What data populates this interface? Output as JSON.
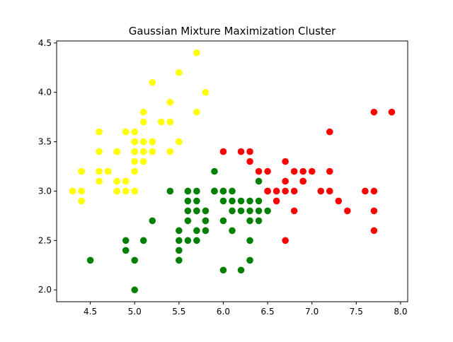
{
  "chart_data": {
    "type": "scatter",
    "title": "Gaussian Mixture Maximization Cluster",
    "xlabel": "",
    "ylabel": "",
    "xlim": [
      4.12,
      8.08
    ],
    "ylim": [
      1.88,
      4.52
    ],
    "x_ticks": [
      "4.5",
      "5.0",
      "5.5",
      "6.0",
      "6.5",
      "7.0",
      "7.5",
      "8.0"
    ],
    "y_ticks": [
      "2.0",
      "2.5",
      "3.0",
      "3.5",
      "4.0",
      "4.5"
    ],
    "grid": false,
    "series": [
      {
        "color": "#ffff00",
        "points": [
          [
            5.1,
            3.5
          ],
          [
            4.9,
            3.0
          ],
          [
            4.7,
            3.2
          ],
          [
            4.6,
            3.1
          ],
          [
            5.0,
            3.6
          ],
          [
            5.4,
            3.9
          ],
          [
            4.6,
            3.4
          ],
          [
            5.0,
            3.4
          ],
          [
            4.4,
            2.9
          ],
          [
            4.9,
            3.1
          ],
          [
            5.4,
            3.7
          ],
          [
            4.8,
            3.4
          ],
          [
            4.8,
            3.0
          ],
          [
            4.3,
            3.0
          ],
          [
            5.8,
            4.0
          ],
          [
            5.7,
            4.4
          ],
          [
            5.1,
            3.8
          ],
          [
            5.7,
            3.8
          ],
          [
            5.4,
            3.4
          ],
          [
            4.6,
            3.6
          ],
          [
            5.1,
            3.3
          ],
          [
            5.0,
            3.0
          ],
          [
            5.2,
            3.5
          ],
          [
            5.2,
            3.4
          ],
          [
            4.7,
            3.2
          ],
          [
            4.8,
            3.1
          ],
          [
            5.2,
            4.1
          ],
          [
            5.5,
            4.2
          ],
          [
            4.9,
            3.1
          ],
          [
            5.0,
            3.2
          ],
          [
            5.5,
            3.5
          ],
          [
            4.4,
            3.0
          ],
          [
            5.1,
            3.4
          ],
          [
            4.4,
            3.2
          ],
          [
            5.1,
            3.7
          ],
          [
            5.0,
            3.5
          ],
          [
            5.3,
            3.7
          ],
          [
            5.0,
            3.3
          ],
          [
            4.9,
            3.6
          ],
          [
            4.8,
            3.4
          ],
          [
            5.1,
            3.5
          ],
          [
            5.0,
            3.4
          ],
          [
            5.4,
            3.7
          ],
          [
            5.2,
            3.5
          ],
          [
            4.9,
            3.6
          ],
          [
            5.0,
            3.5
          ],
          [
            4.4,
            3.2
          ],
          [
            5.1,
            3.4
          ],
          [
            4.8,
            3.0
          ],
          [
            4.6,
            3.2
          ]
        ]
      },
      {
        "color": "#008000",
        "points": [
          [
            4.5,
            2.3
          ],
          [
            5.0,
            2.0
          ],
          [
            4.9,
            2.5
          ],
          [
            4.9,
            2.4
          ],
          [
            5.0,
            2.3
          ],
          [
            5.1,
            2.5
          ],
          [
            5.2,
            2.7
          ],
          [
            5.4,
            3.0
          ],
          [
            5.5,
            2.3
          ],
          [
            5.5,
            2.4
          ],
          [
            5.5,
            2.5
          ],
          [
            5.5,
            2.6
          ],
          [
            5.6,
            2.5
          ],
          [
            5.6,
            2.7
          ],
          [
            5.6,
            2.8
          ],
          [
            5.6,
            2.9
          ],
          [
            5.6,
            3.0
          ],
          [
            5.7,
            2.5
          ],
          [
            5.7,
            2.6
          ],
          [
            5.7,
            2.8
          ],
          [
            5.7,
            2.9
          ],
          [
            5.7,
            3.0
          ],
          [
            5.8,
            2.6
          ],
          [
            5.8,
            2.7
          ],
          [
            5.8,
            2.8
          ],
          [
            5.9,
            3.0
          ],
          [
            5.9,
            3.2
          ],
          [
            6.0,
            2.2
          ],
          [
            6.0,
            2.7
          ],
          [
            6.0,
            2.9
          ],
          [
            6.0,
            3.0
          ],
          [
            6.1,
            2.6
          ],
          [
            6.1,
            2.8
          ],
          [
            6.1,
            2.9
          ],
          [
            6.1,
            3.0
          ],
          [
            6.2,
            2.2
          ],
          [
            6.2,
            2.8
          ],
          [
            6.2,
            2.9
          ],
          [
            6.3,
            2.3
          ],
          [
            6.3,
            2.5
          ],
          [
            6.3,
            2.7
          ],
          [
            6.3,
            2.8
          ],
          [
            6.3,
            2.9
          ],
          [
            6.4,
            2.7
          ],
          [
            6.4,
            2.8
          ],
          [
            6.4,
            2.9
          ],
          [
            6.4,
            3.1
          ],
          [
            6.5,
            2.8
          ],
          [
            6.0,
            3.0
          ],
          [
            5.9,
            3.0
          ],
          [
            5.8,
            2.7
          ],
          [
            5.7,
            2.8
          ]
        ]
      },
      {
        "color": "#ff0000",
        "points": [
          [
            6.0,
            3.4
          ],
          [
            6.2,
            3.4
          ],
          [
            6.3,
            3.4
          ],
          [
            6.3,
            3.3
          ],
          [
            6.4,
            3.2
          ],
          [
            6.5,
            3.2
          ],
          [
            6.5,
            3.0
          ],
          [
            6.6,
            3.0
          ],
          [
            6.6,
            2.9
          ],
          [
            6.7,
            3.3
          ],
          [
            6.7,
            3.1
          ],
          [
            6.7,
            3.0
          ],
          [
            6.7,
            2.5
          ],
          [
            6.8,
            3.2
          ],
          [
            6.8,
            3.0
          ],
          [
            6.8,
            2.8
          ],
          [
            6.9,
            3.2
          ],
          [
            6.9,
            3.1
          ],
          [
            7.0,
            3.2
          ],
          [
            7.1,
            3.0
          ],
          [
            7.2,
            3.6
          ],
          [
            7.2,
            3.2
          ],
          [
            7.2,
            3.0
          ],
          [
            7.3,
            2.9
          ],
          [
            7.4,
            2.8
          ],
          [
            7.6,
            3.0
          ],
          [
            7.7,
            3.8
          ],
          [
            7.7,
            3.0
          ],
          [
            7.7,
            2.8
          ],
          [
            7.7,
            2.6
          ],
          [
            7.9,
            3.8
          ],
          [
            6.5,
            3.0
          ],
          [
            6.9,
            3.1
          ]
        ]
      }
    ]
  }
}
